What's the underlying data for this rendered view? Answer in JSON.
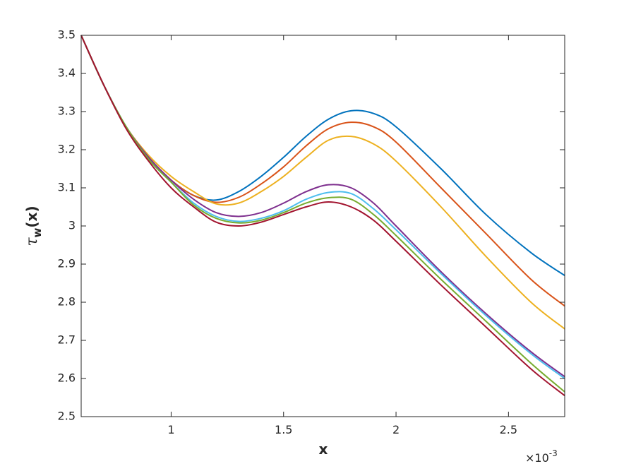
{
  "chart_data": {
    "type": "line",
    "xlabel": "x",
    "ylabel": {
      "symbol": "τ",
      "subscript": "w",
      "arg": "(x)"
    },
    "x_multiplier": {
      "base": "×10",
      "exponent": "-3"
    },
    "xlim": [
      0.6,
      2.75
    ],
    "ylim": [
      2.5,
      3.5
    ],
    "xticks": [
      1,
      1.5,
      2,
      2.5
    ],
    "yticks": [
      2.5,
      2.6,
      2.7,
      2.8,
      2.9,
      3,
      3.1,
      3.2,
      3.3,
      3.4,
      3.5
    ],
    "grid": false,
    "x": [
      0.6,
      0.7,
      0.8,
      0.9,
      1.0,
      1.1,
      1.2,
      1.3,
      1.4,
      1.5,
      1.6,
      1.7,
      1.8,
      1.9,
      2.0,
      2.2,
      2.4,
      2.6,
      2.75
    ],
    "series": [
      {
        "color": "#0072BD",
        "values": [
          3.5,
          3.37,
          3.26,
          3.18,
          3.12,
          3.08,
          3.068,
          3.09,
          3.13,
          3.18,
          3.235,
          3.28,
          3.302,
          3.295,
          3.26,
          3.15,
          3.03,
          2.93,
          2.87
        ]
      },
      {
        "color": "#D95319",
        "values": [
          3.5,
          3.37,
          3.26,
          3.18,
          3.12,
          3.08,
          3.062,
          3.075,
          3.11,
          3.155,
          3.21,
          3.255,
          3.272,
          3.26,
          3.22,
          3.1,
          2.98,
          2.86,
          2.79
        ]
      },
      {
        "color": "#EDB120",
        "values": [
          3.5,
          3.37,
          3.26,
          3.185,
          3.13,
          3.09,
          3.058,
          3.06,
          3.09,
          3.13,
          3.18,
          3.225,
          3.235,
          3.215,
          3.17,
          3.05,
          2.92,
          2.8,
          2.73
        ]
      },
      {
        "color": "#7E2F8E",
        "values": [
          3.5,
          3.37,
          3.26,
          3.18,
          3.12,
          3.07,
          3.035,
          3.025,
          3.035,
          3.06,
          3.09,
          3.108,
          3.1,
          3.06,
          3.0,
          2.88,
          2.77,
          2.67,
          2.605
        ]
      },
      {
        "color": "#4DBEEE",
        "values": [
          3.5,
          3.37,
          3.26,
          3.175,
          3.115,
          3.06,
          3.025,
          3.012,
          3.02,
          3.04,
          3.07,
          3.088,
          3.085,
          3.045,
          2.99,
          2.875,
          2.765,
          2.665,
          2.6
        ]
      },
      {
        "color": "#77AC30",
        "values": [
          3.5,
          3.37,
          3.26,
          3.175,
          3.115,
          3.055,
          3.02,
          3.008,
          3.015,
          3.035,
          3.06,
          3.074,
          3.07,
          3.03,
          2.975,
          2.86,
          2.75,
          2.64,
          2.565
        ]
      },
      {
        "color": "#A2142F",
        "values": [
          3.5,
          3.37,
          3.255,
          3.17,
          3.1,
          3.05,
          3.01,
          3.0,
          3.01,
          3.03,
          3.05,
          3.063,
          3.05,
          3.015,
          2.96,
          2.845,
          2.735,
          2.625,
          2.555
        ]
      }
    ]
  }
}
